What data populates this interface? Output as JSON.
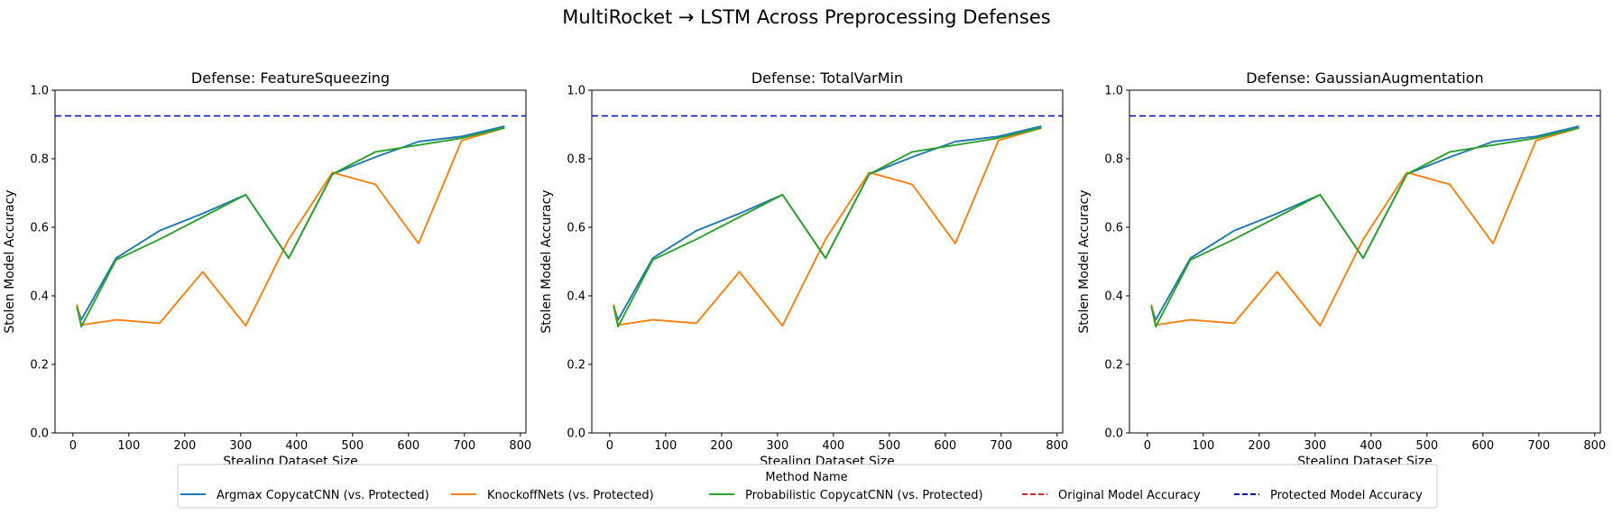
{
  "suptitle": "MultiRocket → LSTM Across Preprocessing Defenses",
  "legend": {
    "title": "Method Name",
    "entries": [
      {
        "label": "Argmax CopycatCNN (vs. Protected)",
        "color": "#1f77b4",
        "dash": "solid"
      },
      {
        "label": "KnockoffNets (vs. Protected)",
        "color": "#ff7f0e",
        "dash": "solid"
      },
      {
        "label": "Probabilistic CopycatCNN (vs. Protected)",
        "color": "#2ca02c",
        "dash": "solid"
      },
      {
        "label": "Original Model Accuracy",
        "color": "#d62728",
        "dash": "dashed"
      },
      {
        "label": "Protected Model Accuracy",
        "color": "#0000cc",
        "dash": "dashed"
      }
    ]
  },
  "chart_data": [
    {
      "type": "line",
      "title": "Defense: FeatureSqueezing",
      "xlabel": "Stealing Dataset Size",
      "ylabel": "Stolen Model Accuracy",
      "xlim": [
        -32,
        810
      ],
      "ylim": [
        0,
        1.0
      ],
      "xticks": [
        0,
        100,
        200,
        300,
        400,
        500,
        600,
        700,
        800
      ],
      "yticks": [
        0.0,
        0.2,
        0.4,
        0.6,
        0.8,
        1.0
      ],
      "grid": false,
      "x": [
        7,
        15,
        77,
        155,
        232,
        309,
        386,
        464,
        541,
        618,
        695,
        772
      ],
      "series": [
        {
          "name": "Argmax CopycatCNN (vs. Protected)",
          "color": "#1f77b4",
          "values": [
            0.37,
            0.33,
            0.51,
            0.59,
            0.64,
            0.695,
            0.51,
            0.755,
            0.805,
            0.85,
            0.865,
            0.895
          ]
        },
        {
          "name": "KnockoffNets (vs. Protected)",
          "color": "#ff7f0e",
          "values": [
            0.375,
            0.315,
            0.33,
            0.32,
            0.47,
            0.313,
            0.565,
            0.76,
            0.725,
            0.553,
            0.853,
            0.89
          ]
        },
        {
          "name": "Probabilistic CopycatCNN (vs. Protected)",
          "color": "#2ca02c",
          "values": [
            0.37,
            0.31,
            0.505,
            0.565,
            0.63,
            0.695,
            0.51,
            0.755,
            0.82,
            0.84,
            0.86,
            0.89
          ]
        }
      ],
      "hlines": [
        {
          "name": "Protected Model Accuracy",
          "color": "#0000cc",
          "value": 0.925,
          "dash": "dashed"
        }
      ]
    },
    {
      "type": "line",
      "title": "Defense: TotalVarMin",
      "xlabel": "Stealing Dataset Size",
      "ylabel": "Stolen Model Accuracy",
      "xlim": [
        -32,
        810
      ],
      "ylim": [
        0,
        1.0
      ],
      "xticks": [
        0,
        100,
        200,
        300,
        400,
        500,
        600,
        700,
        800
      ],
      "yticks": [
        0.0,
        0.2,
        0.4,
        0.6,
        0.8,
        1.0
      ],
      "grid": false,
      "x": [
        7,
        15,
        77,
        155,
        232,
        309,
        386,
        464,
        541,
        618,
        695,
        772
      ],
      "series": [
        {
          "name": "Argmax CopycatCNN (vs. Protected)",
          "color": "#1f77b4",
          "values": [
            0.37,
            0.33,
            0.51,
            0.59,
            0.64,
            0.695,
            0.51,
            0.755,
            0.805,
            0.85,
            0.865,
            0.895
          ]
        },
        {
          "name": "KnockoffNets (vs. Protected)",
          "color": "#ff7f0e",
          "values": [
            0.375,
            0.315,
            0.33,
            0.32,
            0.47,
            0.313,
            0.565,
            0.76,
            0.725,
            0.553,
            0.853,
            0.89
          ]
        },
        {
          "name": "Probabilistic CopycatCNN (vs. Protected)",
          "color": "#2ca02c",
          "values": [
            0.37,
            0.31,
            0.505,
            0.565,
            0.63,
            0.695,
            0.51,
            0.755,
            0.82,
            0.84,
            0.86,
            0.89
          ]
        }
      ],
      "hlines": [
        {
          "name": "Protected Model Accuracy",
          "color": "#0000cc",
          "value": 0.925,
          "dash": "dashed"
        }
      ]
    },
    {
      "type": "line",
      "title": "Defense: GaussianAugmentation",
      "xlabel": "Stealing Dataset Size",
      "ylabel": "Stolen Model Accuracy",
      "xlim": [
        -32,
        810
      ],
      "ylim": [
        0,
        1.0
      ],
      "xticks": [
        0,
        100,
        200,
        300,
        400,
        500,
        600,
        700,
        800
      ],
      "yticks": [
        0.0,
        0.2,
        0.4,
        0.6,
        0.8,
        1.0
      ],
      "grid": false,
      "x": [
        7,
        15,
        77,
        155,
        232,
        309,
        386,
        464,
        541,
        618,
        695,
        772
      ],
      "series": [
        {
          "name": "Argmax CopycatCNN (vs. Protected)",
          "color": "#1f77b4",
          "values": [
            0.37,
            0.33,
            0.51,
            0.59,
            0.64,
            0.695,
            0.51,
            0.755,
            0.805,
            0.85,
            0.865,
            0.895
          ]
        },
        {
          "name": "KnockoffNets (vs. Protected)",
          "color": "#ff7f0e",
          "values": [
            0.375,
            0.315,
            0.33,
            0.32,
            0.47,
            0.313,
            0.565,
            0.76,
            0.725,
            0.553,
            0.853,
            0.89
          ]
        },
        {
          "name": "Probabilistic CopycatCNN (vs. Protected)",
          "color": "#2ca02c",
          "values": [
            0.37,
            0.31,
            0.505,
            0.565,
            0.63,
            0.695,
            0.51,
            0.755,
            0.82,
            0.84,
            0.86,
            0.89
          ]
        }
      ],
      "hlines": [
        {
          "name": "Protected Model Accuracy",
          "color": "#0000cc",
          "value": 0.925,
          "dash": "dashed"
        }
      ]
    }
  ]
}
